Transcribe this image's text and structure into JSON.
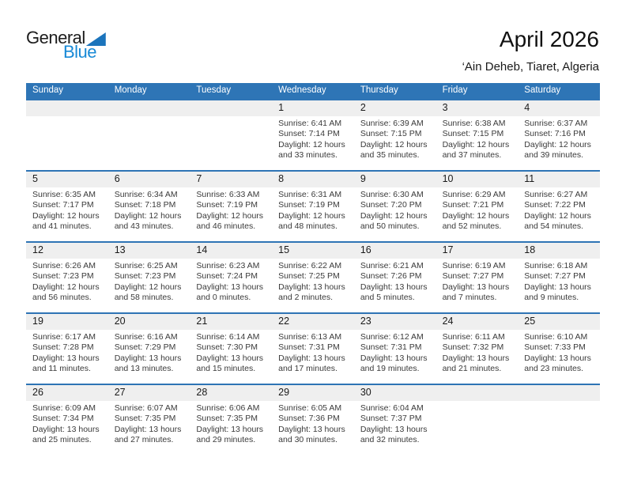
{
  "logo": {
    "text_general": "General",
    "text_blue": "Blue"
  },
  "header": {
    "month_title": "April 2026",
    "location": "‘Ain Deheb, Tiaret, Algeria"
  },
  "colors": {
    "header_blue": "#2E75B6",
    "row_line_blue": "#2E74B5",
    "band_gray": "#EFEFEF",
    "logo_triangle_blue": "#1B74BC",
    "logo_blue_text": "#1789D6"
  },
  "calendar": {
    "weekday_headers": [
      "Sunday",
      "Monday",
      "Tuesday",
      "Wednesday",
      "Thursday",
      "Friday",
      "Saturday"
    ],
    "weeks": [
      [
        null,
        null,
        null,
        {
          "day": "1",
          "sunrise": "Sunrise: 6:41 AM",
          "sunset": "Sunset: 7:14 PM",
          "daylight": "Daylight: 12 hours and 33 minutes."
        },
        {
          "day": "2",
          "sunrise": "Sunrise: 6:39 AM",
          "sunset": "Sunset: 7:15 PM",
          "daylight": "Daylight: 12 hours and 35 minutes."
        },
        {
          "day": "3",
          "sunrise": "Sunrise: 6:38 AM",
          "sunset": "Sunset: 7:15 PM",
          "daylight": "Daylight: 12 hours and 37 minutes."
        },
        {
          "day": "4",
          "sunrise": "Sunrise: 6:37 AM",
          "sunset": "Sunset: 7:16 PM",
          "daylight": "Daylight: 12 hours and 39 minutes."
        }
      ],
      [
        {
          "day": "5",
          "sunrise": "Sunrise: 6:35 AM",
          "sunset": "Sunset: 7:17 PM",
          "daylight": "Daylight: 12 hours and 41 minutes."
        },
        {
          "day": "6",
          "sunrise": "Sunrise: 6:34 AM",
          "sunset": "Sunset: 7:18 PM",
          "daylight": "Daylight: 12 hours and 43 minutes."
        },
        {
          "day": "7",
          "sunrise": "Sunrise: 6:33 AM",
          "sunset": "Sunset: 7:19 PM",
          "daylight": "Daylight: 12 hours and 46 minutes."
        },
        {
          "day": "8",
          "sunrise": "Sunrise: 6:31 AM",
          "sunset": "Sunset: 7:19 PM",
          "daylight": "Daylight: 12 hours and 48 minutes."
        },
        {
          "day": "9",
          "sunrise": "Sunrise: 6:30 AM",
          "sunset": "Sunset: 7:20 PM",
          "daylight": "Daylight: 12 hours and 50 minutes."
        },
        {
          "day": "10",
          "sunrise": "Sunrise: 6:29 AM",
          "sunset": "Sunset: 7:21 PM",
          "daylight": "Daylight: 12 hours and 52 minutes."
        },
        {
          "day": "11",
          "sunrise": "Sunrise: 6:27 AM",
          "sunset": "Sunset: 7:22 PM",
          "daylight": "Daylight: 12 hours and 54 minutes."
        }
      ],
      [
        {
          "day": "12",
          "sunrise": "Sunrise: 6:26 AM",
          "sunset": "Sunset: 7:23 PM",
          "daylight": "Daylight: 12 hours and 56 minutes."
        },
        {
          "day": "13",
          "sunrise": "Sunrise: 6:25 AM",
          "sunset": "Sunset: 7:23 PM",
          "daylight": "Daylight: 12 hours and 58 minutes."
        },
        {
          "day": "14",
          "sunrise": "Sunrise: 6:23 AM",
          "sunset": "Sunset: 7:24 PM",
          "daylight": "Daylight: 13 hours and 0 minutes."
        },
        {
          "day": "15",
          "sunrise": "Sunrise: 6:22 AM",
          "sunset": "Sunset: 7:25 PM",
          "daylight": "Daylight: 13 hours and 2 minutes."
        },
        {
          "day": "16",
          "sunrise": "Sunrise: 6:21 AM",
          "sunset": "Sunset: 7:26 PM",
          "daylight": "Daylight: 13 hours and 5 minutes."
        },
        {
          "day": "17",
          "sunrise": "Sunrise: 6:19 AM",
          "sunset": "Sunset: 7:27 PM",
          "daylight": "Daylight: 13 hours and 7 minutes."
        },
        {
          "day": "18",
          "sunrise": "Sunrise: 6:18 AM",
          "sunset": "Sunset: 7:27 PM",
          "daylight": "Daylight: 13 hours and 9 minutes."
        }
      ],
      [
        {
          "day": "19",
          "sunrise": "Sunrise: 6:17 AM",
          "sunset": "Sunset: 7:28 PM",
          "daylight": "Daylight: 13 hours and 11 minutes."
        },
        {
          "day": "20",
          "sunrise": "Sunrise: 6:16 AM",
          "sunset": "Sunset: 7:29 PM",
          "daylight": "Daylight: 13 hours and 13 minutes."
        },
        {
          "day": "21",
          "sunrise": "Sunrise: 6:14 AM",
          "sunset": "Sunset: 7:30 PM",
          "daylight": "Daylight: 13 hours and 15 minutes."
        },
        {
          "day": "22",
          "sunrise": "Sunrise: 6:13 AM",
          "sunset": "Sunset: 7:31 PM",
          "daylight": "Daylight: 13 hours and 17 minutes."
        },
        {
          "day": "23",
          "sunrise": "Sunrise: 6:12 AM",
          "sunset": "Sunset: 7:31 PM",
          "daylight": "Daylight: 13 hours and 19 minutes."
        },
        {
          "day": "24",
          "sunrise": "Sunrise: 6:11 AM",
          "sunset": "Sunset: 7:32 PM",
          "daylight": "Daylight: 13 hours and 21 minutes."
        },
        {
          "day": "25",
          "sunrise": "Sunrise: 6:10 AM",
          "sunset": "Sunset: 7:33 PM",
          "daylight": "Daylight: 13 hours and 23 minutes."
        }
      ],
      [
        {
          "day": "26",
          "sunrise": "Sunrise: 6:09 AM",
          "sunset": "Sunset: 7:34 PM",
          "daylight": "Daylight: 13 hours and 25 minutes."
        },
        {
          "day": "27",
          "sunrise": "Sunrise: 6:07 AM",
          "sunset": "Sunset: 7:35 PM",
          "daylight": "Daylight: 13 hours and 27 minutes."
        },
        {
          "day": "28",
          "sunrise": "Sunrise: 6:06 AM",
          "sunset": "Sunset: 7:35 PM",
          "daylight": "Daylight: 13 hours and 29 minutes."
        },
        {
          "day": "29",
          "sunrise": "Sunrise: 6:05 AM",
          "sunset": "Sunset: 7:36 PM",
          "daylight": "Daylight: 13 hours and 30 minutes."
        },
        {
          "day": "30",
          "sunrise": "Sunrise: 6:04 AM",
          "sunset": "Sunset: 7:37 PM",
          "daylight": "Daylight: 13 hours and 32 minutes."
        },
        null,
        null
      ]
    ]
  }
}
